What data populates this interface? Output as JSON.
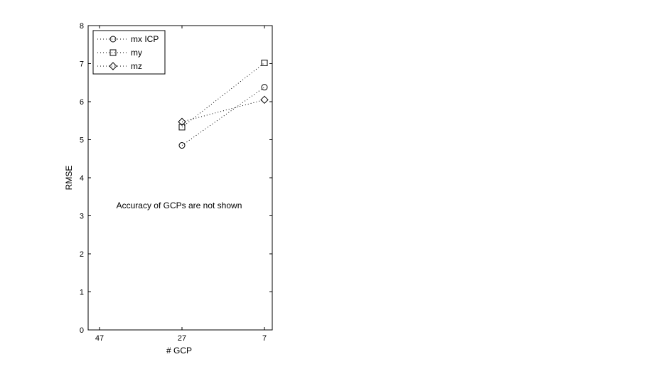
{
  "chart_data": {
    "type": "line",
    "title": "",
    "xlabel": "# GCP",
    "ylabel": "RMSE",
    "categories": [
      "47",
      "27",
      "7"
    ],
    "ylim": [
      0,
      8
    ],
    "yticks": [
      "0",
      "1",
      "2",
      "3",
      "4",
      "5",
      "6",
      "7",
      "8"
    ],
    "grid": false,
    "legend_position": "top-left",
    "line_style": "dotted",
    "annotation": "Accuracy of GCPs are not shown",
    "series": [
      {
        "name": "mx ICP",
        "marker": "circle",
        "values": [
          null,
          4.85,
          6.38
        ]
      },
      {
        "name": "my",
        "marker": "square",
        "values": [
          null,
          5.33,
          7.02
        ]
      },
      {
        "name": "mz",
        "marker": "diamond",
        "values": [
          null,
          5.47,
          6.05
        ]
      }
    ]
  }
}
